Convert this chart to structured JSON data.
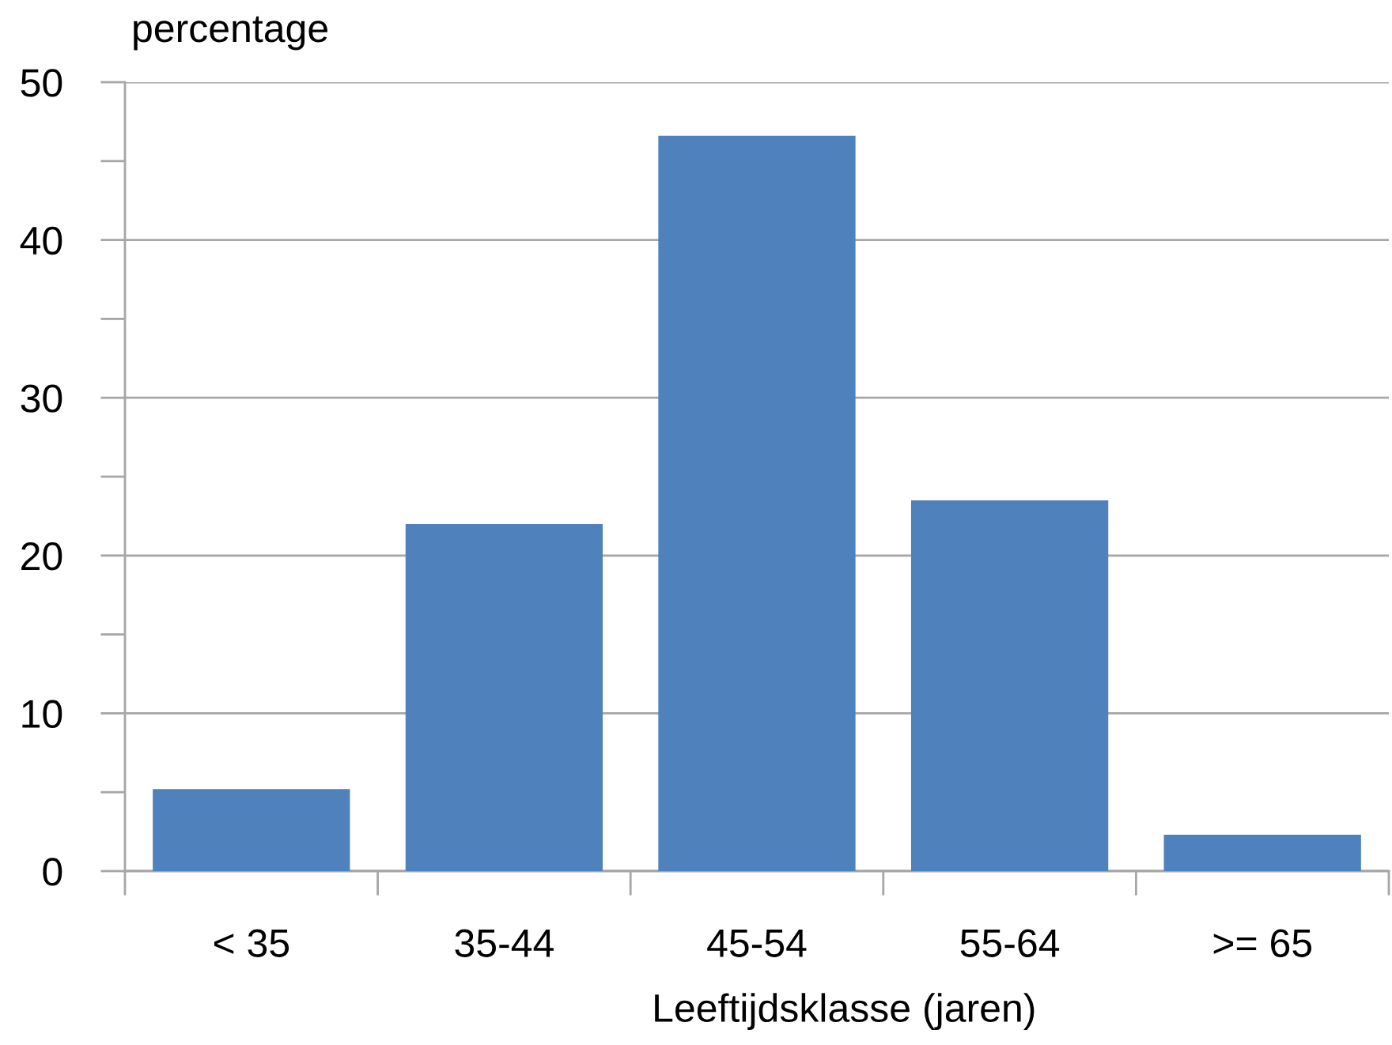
{
  "chart_data": {
    "type": "bar",
    "ylabel": "percentage",
    "xlabel": "Leeftijdsklasse (jaren)",
    "categories": [
      "< 35",
      "35-44",
      "45-54",
      "55-64",
      ">= 65"
    ],
    "values": [
      5.2,
      22.0,
      46.6,
      23.5,
      2.3
    ],
    "color": "#4f81bd",
    "ylim": [
      0,
      50
    ],
    "yticks": [
      0,
      {
        "value": 5,
        "label": null
      },
      10,
      {
        "value": 15,
        "label": null
      },
      20,
      {
        "value": 25,
        "label": null
      },
      30,
      {
        "value": 35,
        "label": null
      },
      40,
      {
        "value": 45,
        "label": null
      },
      50
    ],
    "grid": "y"
  }
}
